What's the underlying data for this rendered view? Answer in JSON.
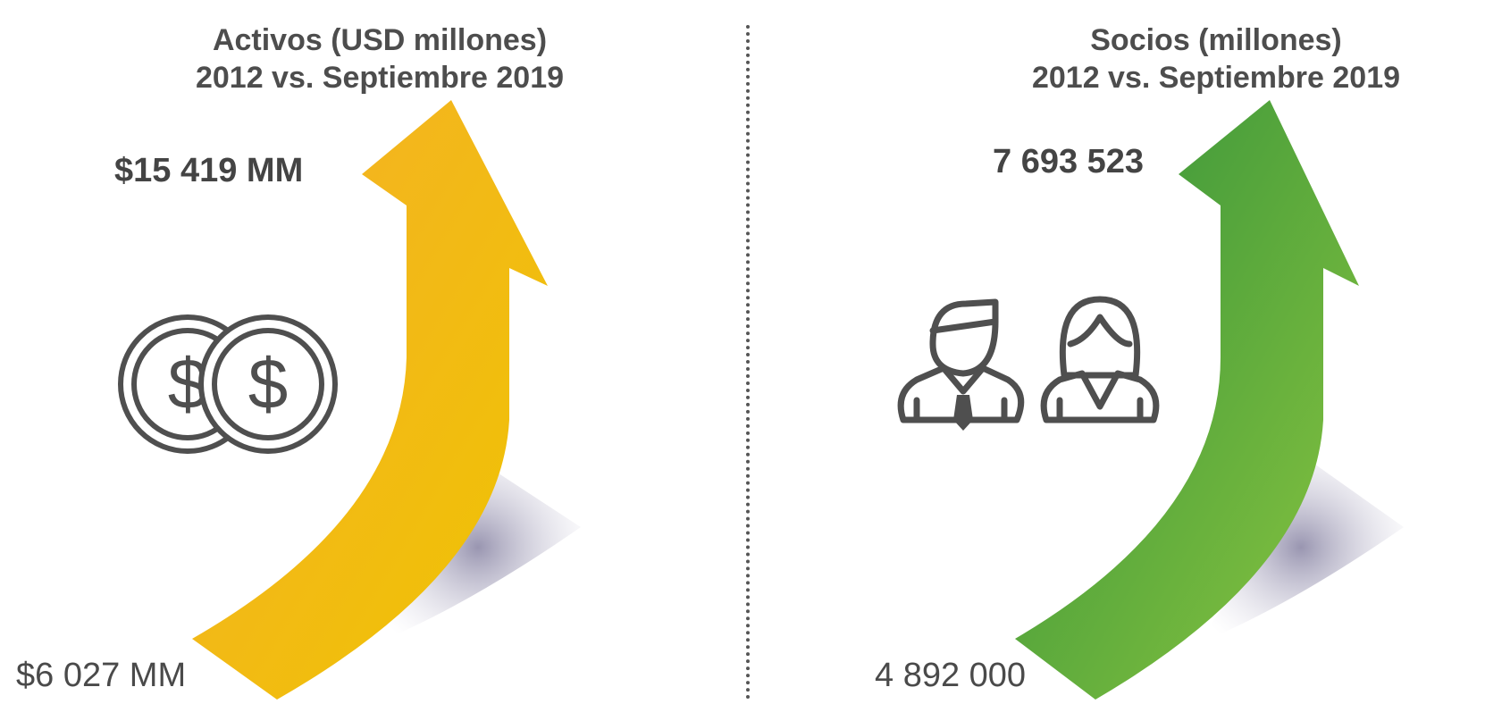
{
  "left": {
    "title_line1": "Activos (USD millones)",
    "title_line2": "2012 vs. Septiembre 2019",
    "value_2019": "$15 419 MM",
    "value_2012": "$6 027 MM",
    "icon": "coins-icon",
    "arrow_color_start": "#f4b223",
    "arrow_color_end": "#efc200"
  },
  "right": {
    "title_line1": "Socios (millones)",
    "title_line2": "2012 vs. Septiembre 2019",
    "value_2019": "7 693 523",
    "value_2012": "4 892 000",
    "icon": "people-icon",
    "arrow_color_start": "#3a9a3a",
    "arrow_color_end": "#8cc63f"
  },
  "shadow_color": "#9e9bb8",
  "icon_color": "#4f4f4f"
}
